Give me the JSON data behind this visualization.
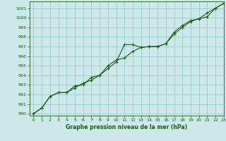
{
  "title": "Graphe pression niveau de la mer (hPa)",
  "xlim": [
    -0.5,
    23
  ],
  "ylim": [
    989.8,
    1001.7
  ],
  "xticks": [
    0,
    1,
    2,
    3,
    4,
    5,
    6,
    7,
    8,
    9,
    10,
    11,
    12,
    13,
    14,
    15,
    16,
    17,
    18,
    19,
    20,
    21,
    22,
    23
  ],
  "yticks": [
    990,
    991,
    992,
    993,
    994,
    995,
    996,
    997,
    998,
    999,
    1000,
    1001
  ],
  "bg_color": "#cce8e8",
  "grid_color": "#99cccc",
  "line_color": "#1a5c1a",
  "series1_x": [
    0,
    1,
    2,
    3,
    4,
    5,
    6,
    7,
    8,
    9,
    10,
    11,
    12,
    13,
    14,
    15,
    16,
    17,
    18,
    19,
    20,
    21,
    22,
    23
  ],
  "series1_y": [
    990.0,
    990.6,
    991.8,
    992.2,
    992.2,
    992.7,
    993.2,
    993.5,
    994.0,
    994.7,
    995.4,
    997.2,
    997.2,
    996.9,
    997.0,
    997.0,
    997.3,
    998.5,
    999.2,
    999.7,
    999.9,
    1000.1,
    1001.0,
    1001.5
  ],
  "series2_x": [
    0,
    1,
    2,
    3,
    4,
    5,
    6,
    7,
    8,
    9,
    10,
    11,
    12,
    13,
    14,
    15,
    16,
    17,
    18,
    19,
    20,
    21,
    22,
    23
  ],
  "series2_y": [
    990.0,
    990.6,
    991.8,
    992.2,
    992.2,
    992.9,
    993.0,
    993.8,
    994.0,
    995.0,
    995.6,
    995.8,
    996.5,
    996.9,
    997.0,
    997.0,
    997.3,
    998.3,
    999.0,
    999.6,
    999.9,
    1000.5,
    1001.0,
    1001.5
  ]
}
